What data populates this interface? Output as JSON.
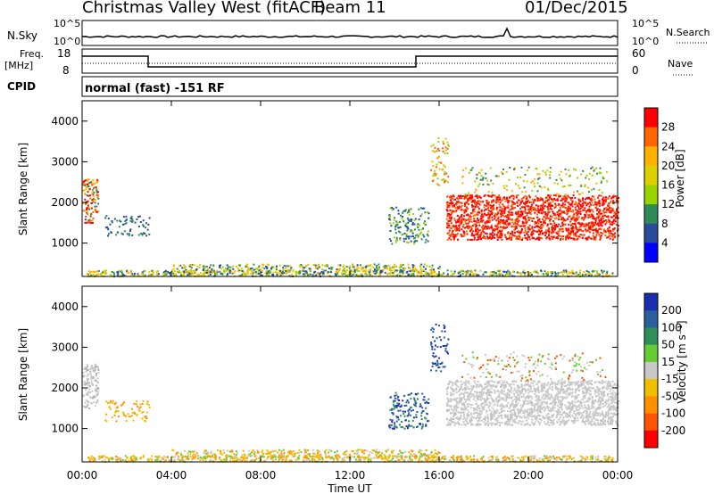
{
  "header": {
    "title": "Christmas Valley West (fitACF)",
    "beam": "Beam 11",
    "date": "01/Dec/2015"
  },
  "strip_labels": {
    "nsky": "N.Sky",
    "nsky_ticks": [
      "10^5",
      "10^0"
    ],
    "freq_label_1": "Freq.",
    "freq_label_2": "[MHz]",
    "freq_ticks": [
      "18",
      "8"
    ],
    "nave_ticks": [
      "60",
      "0"
    ],
    "nsearch": "N.Search",
    "nave": "Nave",
    "nsearch_ticks": [
      "10^5",
      "10^0"
    ],
    "cpid": "CPID",
    "cpid_text": "normal (fast) -151 RF"
  },
  "chart_data": [
    {
      "type": "heatmap",
      "panel": "power",
      "ylabel": "Slant Range [km]",
      "yticks": [
        "4000",
        "3000",
        "2000",
        "1000"
      ],
      "colorbar_label": "Power [dB]",
      "colorbar_ticks": [
        "28",
        "24",
        "20",
        "16",
        "12",
        "8",
        "4"
      ],
      "colorbar_colors": [
        "#ff0000",
        "#ff6600",
        "#ffb000",
        "#ddd000",
        "#99d400",
        "#2e8b57",
        "#2b4c9c",
        "#0000ff"
      ],
      "ylim": [
        180,
        4500
      ],
      "xlim": [
        0,
        24
      ]
    },
    {
      "type": "heatmap",
      "panel": "velocity",
      "ylabel": "Slant Range [km]",
      "yticks": [
        "4000",
        "3000",
        "2000",
        "1000"
      ],
      "colorbar_label": "Velocity [m s⁻¹]",
      "colorbar_ticks": [
        "200",
        "100",
        "50",
        "15",
        "-15",
        "-50",
        "-100",
        "-200"
      ],
      "colorbar_colors": [
        "#1a2fb0",
        "#2a60a0",
        "#2f8f5a",
        "#66cc33",
        "#c8c8c8",
        "#f0c000",
        "#ff9000",
        "#ff5500",
        "#ff0000"
      ],
      "ylim": [
        180,
        4500
      ],
      "xlim": [
        0,
        24
      ]
    }
  ],
  "xaxis": {
    "ticks": [
      "00:00",
      "04:00",
      "08:00",
      "12:00",
      "16:00",
      "20:00",
      "00:00"
    ],
    "label": "Time UT"
  }
}
